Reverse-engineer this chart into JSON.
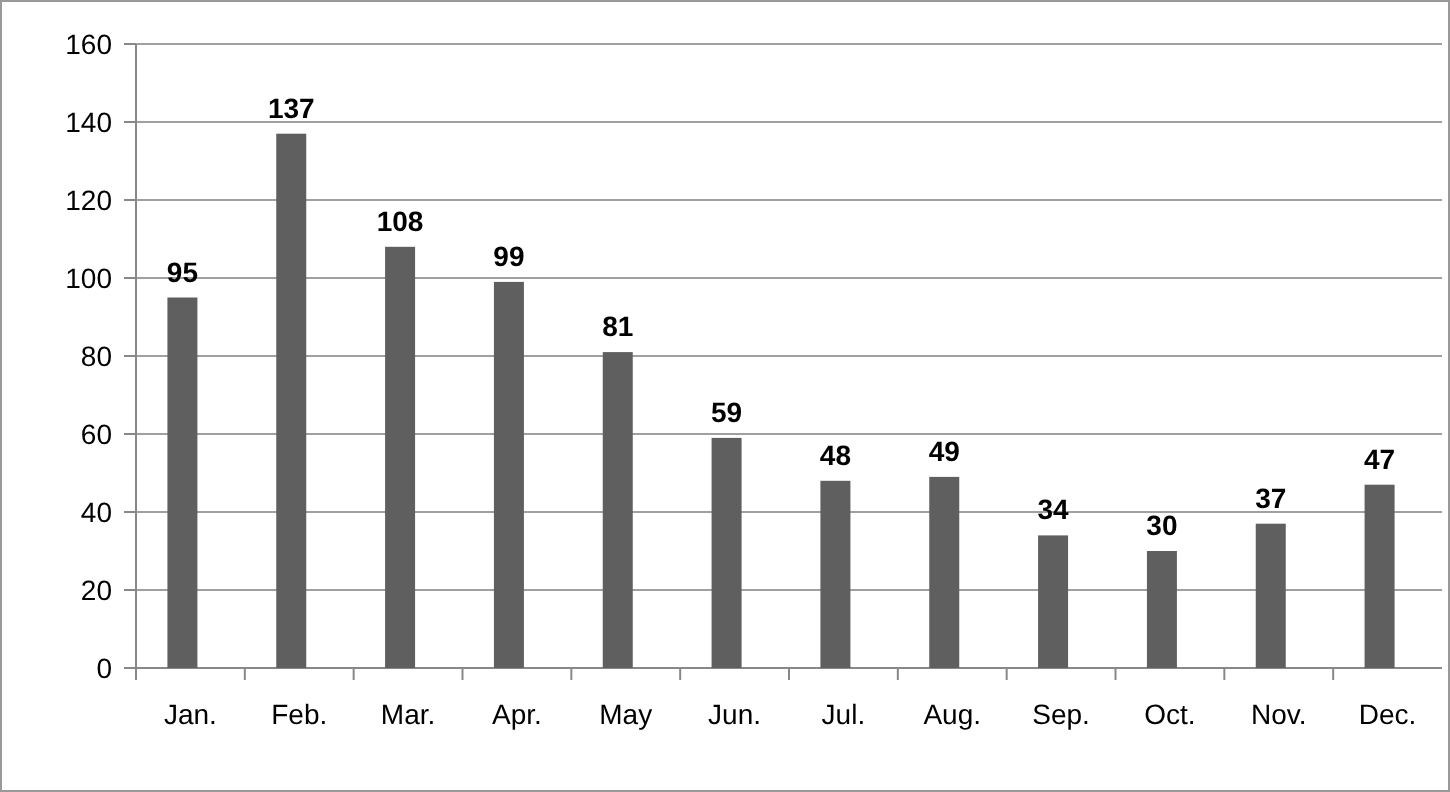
{
  "chart_data": {
    "type": "bar",
    "categories": [
      "Jan.",
      "Feb.",
      "Mar.",
      "Apr.",
      "May",
      "Jun.",
      "Jul.",
      "Aug.",
      "Sep.",
      "Oct.",
      "Nov.",
      "Dec."
    ],
    "values": [
      95,
      137,
      108,
      99,
      81,
      59,
      48,
      49,
      34,
      30,
      37,
      47
    ],
    "color": "#5f5f5f",
    "ylim": [
      0,
      160
    ],
    "yticks": [
      0,
      20,
      40,
      60,
      80,
      100,
      120,
      140,
      160
    ],
    "grid": "y",
    "data_labels": true
  }
}
